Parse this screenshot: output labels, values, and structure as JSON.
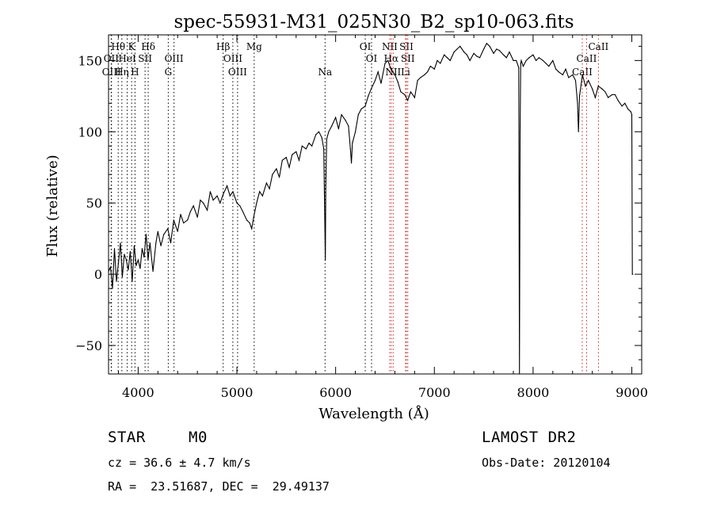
{
  "chart_data": {
    "type": "line",
    "title": "spec-55931-M31_025N30_B2_sp10-063.fits",
    "xlabel": "Wavelength (Å)",
    "ylabel": "Flux (relative)",
    "xlim": [
      3700,
      9100
    ],
    "ylim": [
      -70,
      168
    ],
    "xticks": [
      4000,
      5000,
      6000,
      7000,
      8000,
      9000
    ],
    "yticks": [
      -50,
      0,
      50,
      100,
      150
    ],
    "grid": false,
    "series": [
      {
        "x": [
          3700,
          3720,
          3740,
          3760,
          3780,
          3800,
          3820,
          3840,
          3860,
          3880,
          3900,
          3920,
          3940,
          3960,
          3980,
          4000,
          4020,
          4040,
          4060,
          4080,
          4100,
          4120,
          4150,
          4180,
          4200,
          4230,
          4260,
          4300,
          4330,
          4360,
          4400,
          4430,
          4460,
          4500,
          4530,
          4560,
          4600,
          4630,
          4660,
          4700,
          4730,
          4760,
          4800,
          4830,
          4860,
          4900,
          4930,
          4960,
          5000,
          5030,
          5060,
          5100,
          5130,
          5150,
          5170,
          5200,
          5230,
          5260,
          5300,
          5330,
          5360,
          5400,
          5430,
          5460,
          5500,
          5530,
          5560,
          5600,
          5630,
          5660,
          5700,
          5730,
          5760,
          5800,
          5830,
          5860,
          5880,
          5890,
          5896,
          5900,
          5910,
          5930,
          5960,
          6000,
          6030,
          6060,
          6100,
          6130,
          6150,
          6160,
          6170,
          6200,
          6230,
          6260,
          6300,
          6330,
          6360,
          6400,
          6430,
          6460,
          6500,
          6530,
          6560,
          6600,
          6630,
          6660,
          6700,
          6730,
          6760,
          6800,
          6830,
          6860,
          6900,
          6930,
          6960,
          7000,
          7030,
          7060,
          7100,
          7130,
          7160,
          7200,
          7230,
          7260,
          7300,
          7330,
          7360,
          7400,
          7430,
          7460,
          7500,
          7530,
          7560,
          7600,
          7630,
          7660,
          7700,
          7730,
          7760,
          7800,
          7830,
          7855,
          7862,
          7868,
          7875,
          7880,
          7900,
          7930,
          7960,
          8000,
          8030,
          8060,
          8100,
          8130,
          8160,
          8200,
          8230,
          8260,
          8300,
          8330,
          8360,
          8400,
          8430,
          8450,
          8460,
          8470,
          8500,
          8530,
          8560,
          8600,
          8630,
          8660,
          8700,
          8730,
          8760,
          8800,
          8830,
          8860,
          8900,
          8930,
          8960,
          8990,
          9000,
          9005,
          9010
        ],
        "y": [
          2,
          5,
          -10,
          18,
          -5,
          8,
          22,
          -2,
          14,
          10,
          3,
          16,
          -5,
          20,
          6,
          10,
          4,
          18,
          12,
          28,
          10,
          22,
          2,
          22,
          30,
          20,
          28,
          32,
          22,
          38,
          30,
          42,
          36,
          38,
          44,
          48,
          40,
          52,
          50,
          45,
          58,
          52,
          55,
          50,
          56,
          62,
          55,
          58,
          50,
          48,
          44,
          38,
          36,
          32,
          40,
          50,
          58,
          55,
          64,
          60,
          70,
          74,
          68,
          80,
          82,
          75,
          84,
          86,
          80,
          90,
          88,
          92,
          90,
          98,
          100,
          96,
          88,
          40,
          10,
          60,
          95,
          100,
          104,
          110,
          102,
          112,
          108,
          104,
          88,
          78,
          92,
          100,
          112,
          116,
          118,
          125,
          130,
          136,
          142,
          134,
          148,
          150,
          144,
          140,
          135,
          128,
          126,
          122,
          128,
          124,
          136,
          138,
          140,
          142,
          146,
          144,
          150,
          148,
          154,
          152,
          150,
          156,
          158,
          160,
          156,
          154,
          150,
          155,
          153,
          152,
          158,
          162,
          160,
          155,
          158,
          157,
          154,
          152,
          156,
          150,
          150,
          145,
          -70,
          100,
          148,
          150,
          146,
          150,
          152,
          154,
          150,
          152,
          150,
          148,
          146,
          150,
          144,
          142,
          140,
          144,
          138,
          140,
          136,
          120,
          100,
          125,
          140,
          132,
          136,
          130,
          124,
          132,
          130,
          128,
          124,
          126,
          126,
          122,
          118,
          120,
          116,
          114,
          112,
          0,
          0
        ]
      }
    ],
    "lines": [
      {
        "label": "Hθ",
        "x": 3798,
        "row": 0,
        "color": "#000000"
      },
      {
        "label": "K",
        "x": 3934,
        "row": 0,
        "color": "#000000"
      },
      {
        "label": "Hδ",
        "x": 4102,
        "row": 0,
        "color": "#000000"
      },
      {
        "label": "OII",
        "x": 3727,
        "row": 1,
        "color": "#000000"
      },
      {
        "label": "HeI",
        "x": 3889,
        "row": 1,
        "color": "#000000"
      },
      {
        "label": "SII",
        "x": 4070,
        "row": 1,
        "color": "#000000"
      },
      {
        "label": "OIII",
        "x": 4363,
        "row": 1,
        "color": "#000000"
      },
      {
        "label": "OIII",
        "x": 3730,
        "row": 2,
        "color": "#000000"
      },
      {
        "label": "Hη",
        "x": 3835,
        "row": 2,
        "color": "#000000"
      },
      {
        "label": "H",
        "x": 3968,
        "row": 2,
        "color": "#000000"
      },
      {
        "label": "G",
        "x": 4305,
        "row": 2,
        "color": "#000000"
      },
      {
        "label": "Hβ",
        "x": 4861,
        "row": 0,
        "color": "#000000"
      },
      {
        "label": "Mg",
        "x": 5175,
        "row": 0,
        "color": "#000000"
      },
      {
        "label": "OIII",
        "x": 4959,
        "row": 1,
        "color": "#000000"
      },
      {
        "label": "OIII",
        "x": 5007,
        "row": 2,
        "color": "#000000"
      },
      {
        "label": "Na",
        "x": 5893,
        "row": 2,
        "color": "#000000"
      },
      {
        "label": "OI",
        "x": 6300,
        "row": 0,
        "color": "#000000"
      },
      {
        "label": "OI",
        "x": 6364,
        "row": 1,
        "color": "#000000"
      },
      {
        "label": "NII",
        "x": 6548,
        "row": 0,
        "color": "#cc2222"
      },
      {
        "label": "SII",
        "x": 6717,
        "row": 0,
        "color": "#cc2222"
      },
      {
        "label": "Hα",
        "x": 6563,
        "row": 1,
        "color": "#cc2222"
      },
      {
        "label": "SII",
        "x": 6731,
        "row": 1,
        "color": "#cc2222"
      },
      {
        "label": "NII",
        "x": 6583,
        "row": 2,
        "color": "#cc2222"
      },
      {
        "label": "Li",
        "x": 6708,
        "row": 2,
        "color": "#cc2222"
      },
      {
        "label": "CaII",
        "x": 8498,
        "row": 2,
        "color": "#cc2222"
      },
      {
        "label": "CaII",
        "x": 8542,
        "row": 1,
        "color": "#cc2222"
      },
      {
        "label": "CaII",
        "x": 8662,
        "row": 0,
        "color": "#cc2222"
      }
    ]
  },
  "info": {
    "class_label": "STAR",
    "subclass": "M0",
    "survey": "LAMOST DR2",
    "cz": "cz = 36.6 ± 4.7 km/s",
    "obs_date": "Obs-Date: 20120104",
    "coords": "RA =  23.51687, DEC =  29.49137"
  }
}
